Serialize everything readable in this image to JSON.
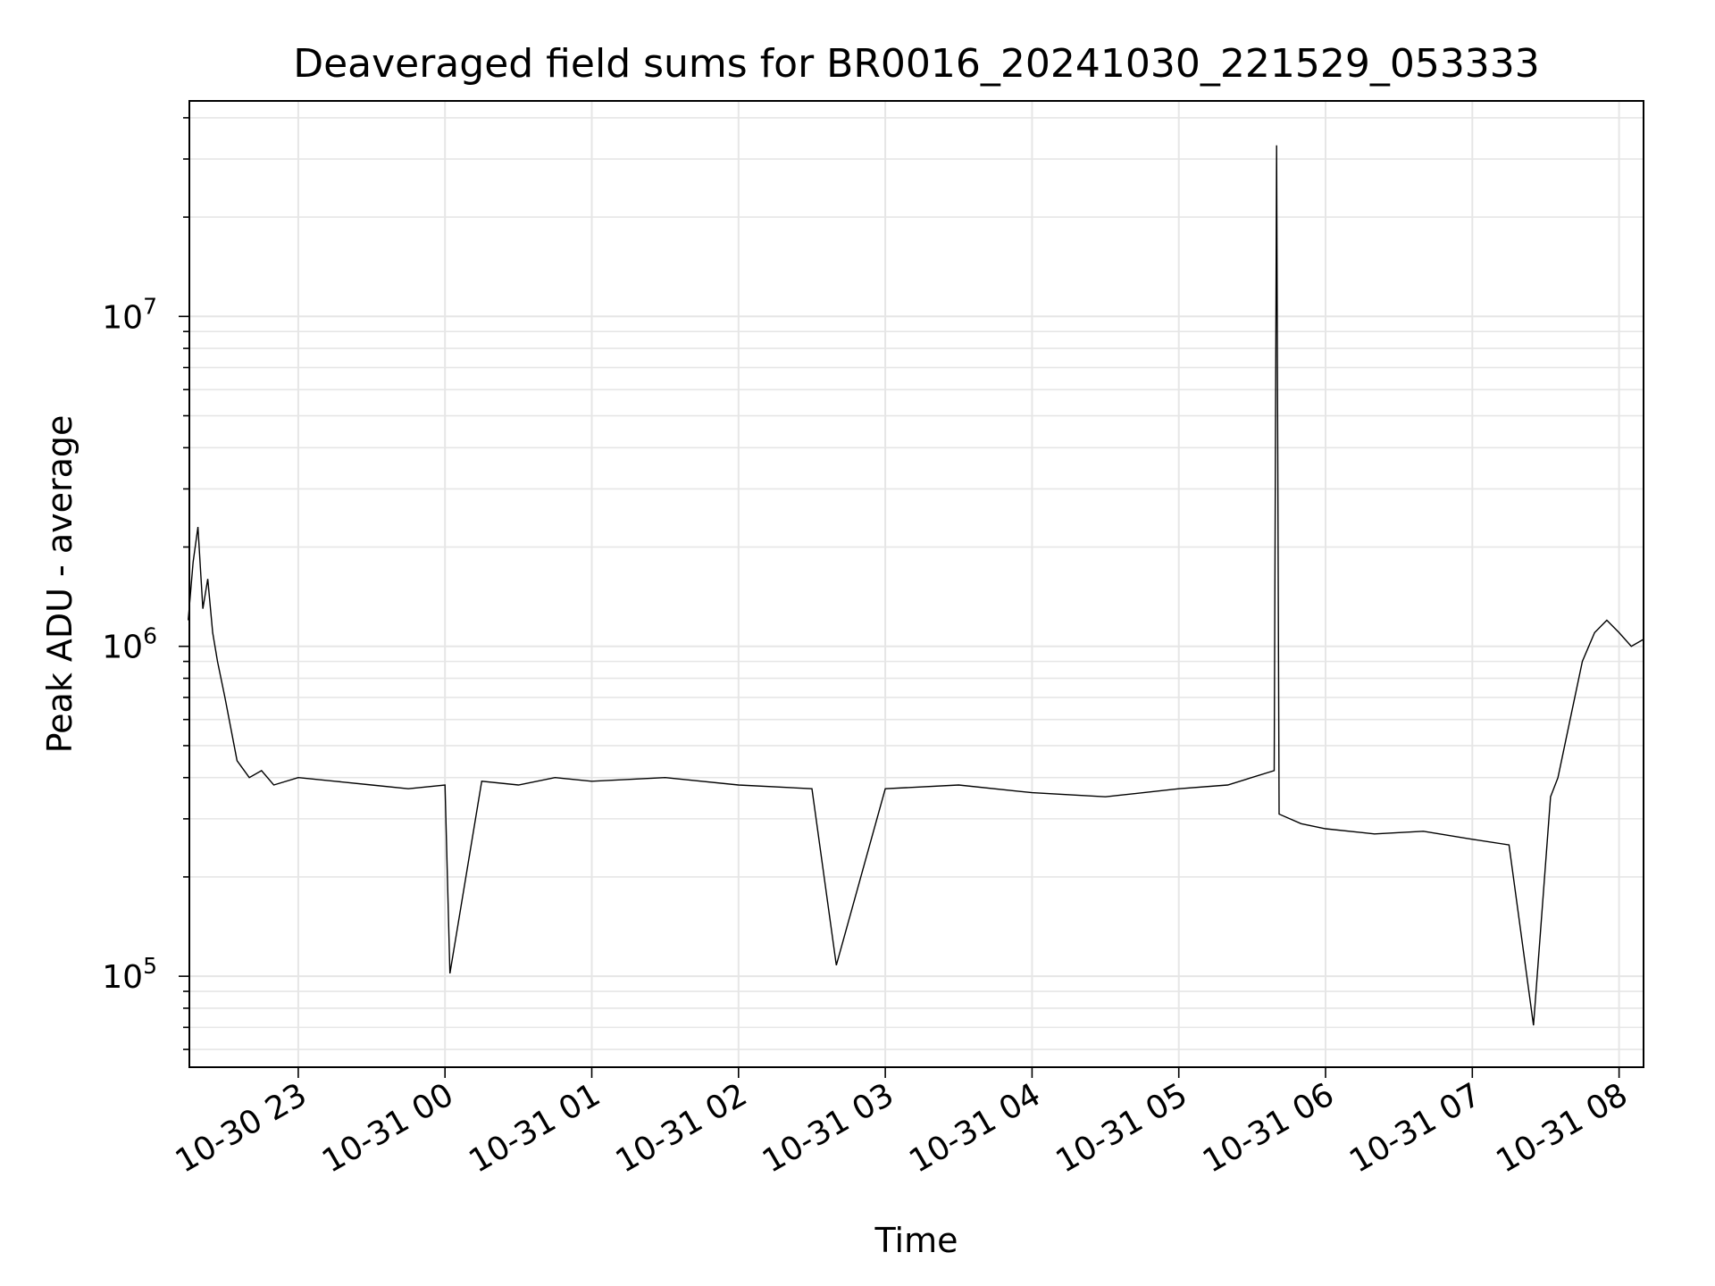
{
  "chart_data": {
    "type": "line",
    "title": "Deaveraged field sums for BR0016_20241030_221529_053333",
    "xlabel": "Time",
    "ylabel": "Peak ADU - average",
    "yscale": "log",
    "grid": true,
    "legend": "none",
    "line_color": "#000000",
    "grid_color": "#e6e6e6",
    "xlim": [
      "2024-10-30 22:15:29",
      "2024-10-31 08:10:00"
    ],
    "ylim": [
      53000,
      45000000
    ],
    "x_ticks": [
      {
        "value": "2024-10-30 23:00",
        "label": "10-30 23"
      },
      {
        "value": "2024-10-31 00:00",
        "label": "10-31 00"
      },
      {
        "value": "2024-10-31 01:00",
        "label": "10-31 01"
      },
      {
        "value": "2024-10-31 02:00",
        "label": "10-31 02"
      },
      {
        "value": "2024-10-31 03:00",
        "label": "10-31 03"
      },
      {
        "value": "2024-10-31 04:00",
        "label": "10-31 04"
      },
      {
        "value": "2024-10-31 05:00",
        "label": "10-31 05"
      },
      {
        "value": "2024-10-31 06:00",
        "label": "10-31 06"
      },
      {
        "value": "2024-10-31 07:00",
        "label": "10-31 07"
      },
      {
        "value": "2024-10-31 08:00",
        "label": "10-31 08"
      }
    ],
    "y_ticks": [
      {
        "value": 100000,
        "base": "10",
        "exp": "5"
      },
      {
        "value": 1000000,
        "base": "10",
        "exp": "6"
      },
      {
        "value": 10000000,
        "base": "10",
        "exp": "7"
      }
    ],
    "series": [
      {
        "sampled": true,
        "x": [
          "2024-10-30 22:15",
          "2024-10-30 22:17",
          "2024-10-30 22:19",
          "2024-10-30 22:21",
          "2024-10-30 22:23",
          "2024-10-30 22:25",
          "2024-10-30 22:27",
          "2024-10-30 22:30",
          "2024-10-30 22:35",
          "2024-10-30 22:40",
          "2024-10-30 22:45",
          "2024-10-30 22:50",
          "2024-10-30 23:00",
          "2024-10-30 23:15",
          "2024-10-30 23:30",
          "2024-10-30 23:45",
          "2024-10-31 00:00",
          "2024-10-31 00:02",
          "2024-10-31 00:15",
          "2024-10-31 00:30",
          "2024-10-31 00:45",
          "2024-10-31 01:00",
          "2024-10-31 01:30",
          "2024-10-31 02:00",
          "2024-10-31 02:30",
          "2024-10-31 02:40",
          "2024-10-31 03:00",
          "2024-10-31 03:30",
          "2024-10-31 04:00",
          "2024-10-31 04:30",
          "2024-10-31 05:00",
          "2024-10-31 05:20",
          "2024-10-31 05:39",
          "2024-10-31 05:40",
          "2024-10-31 05:41",
          "2024-10-31 05:50",
          "2024-10-31 06:00",
          "2024-10-31 06:20",
          "2024-10-31 06:40",
          "2024-10-31 07:00",
          "2024-10-31 07:15",
          "2024-10-31 07:25",
          "2024-10-31 07:32",
          "2024-10-31 07:35",
          "2024-10-31 07:40",
          "2024-10-31 07:45",
          "2024-10-31 07:50",
          "2024-10-31 07:55",
          "2024-10-31 08:00",
          "2024-10-31 08:05",
          "2024-10-31 08:10"
        ],
        "y": [
          1200000,
          1800000,
          2300000,
          1300000,
          1600000,
          1100000,
          900000,
          700000,
          450000,
          400000,
          420000,
          380000,
          400000,
          390000,
          380000,
          370000,
          380000,
          102000,
          390000,
          380000,
          400000,
          390000,
          400000,
          380000,
          370000,
          108000,
          370000,
          380000,
          360000,
          350000,
          370000,
          380000,
          420000,
          33000000,
          310000,
          290000,
          280000,
          270000,
          275000,
          260000,
          250000,
          71000,
          350000,
          400000,
          600000,
          900000,
          1100000,
          1200000,
          1100000,
          1000000,
          1050000
        ]
      }
    ]
  }
}
